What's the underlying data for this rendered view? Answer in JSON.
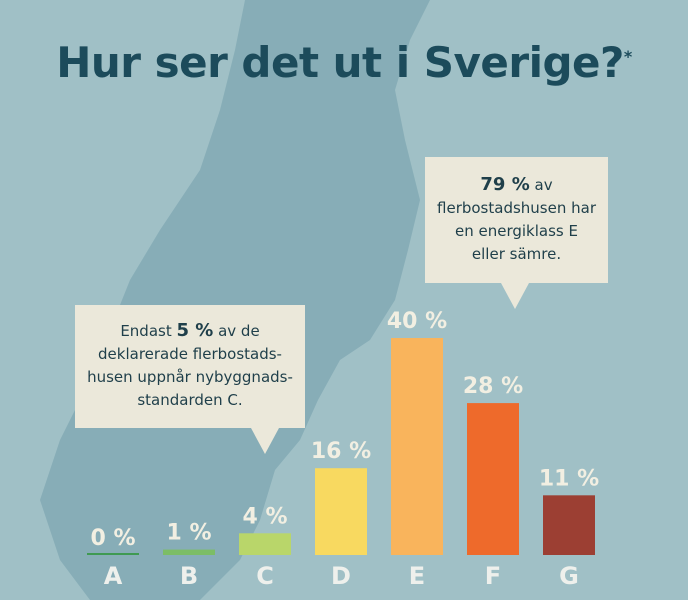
{
  "chart_data": {
    "type": "bar",
    "title": "Hur ser det ut i Sverige?",
    "title_note": "*",
    "categories": [
      "A",
      "B",
      "C",
      "D",
      "E",
      "F",
      "G"
    ],
    "values": [
      0,
      1,
      4,
      16,
      40,
      28,
      11
    ],
    "value_labels": [
      "0 %",
      "1 %",
      "4 %",
      "16 %",
      "40 %",
      "28 %",
      "11 %"
    ],
    "colors": [
      "#3f9a52",
      "#7cbd66",
      "#b9d66a",
      "#f8d960",
      "#f9b45c",
      "#ee6a2b",
      "#9c3f33"
    ],
    "annotations": [
      {
        "lines": [
          [
            "Endast ",
            "5 %",
            " av de"
          ],
          [
            "deklarerade flerbostads-"
          ],
          [
            "husen uppnår nybyggnads-"
          ],
          [
            "standarden C."
          ]
        ]
      },
      {
        "lines": [
          [
            "79 %",
            " av"
          ],
          [
            "flerbostadshusen har"
          ],
          [
            "en energiklass E"
          ],
          [
            "eller sämre."
          ]
        ]
      }
    ]
  }
}
